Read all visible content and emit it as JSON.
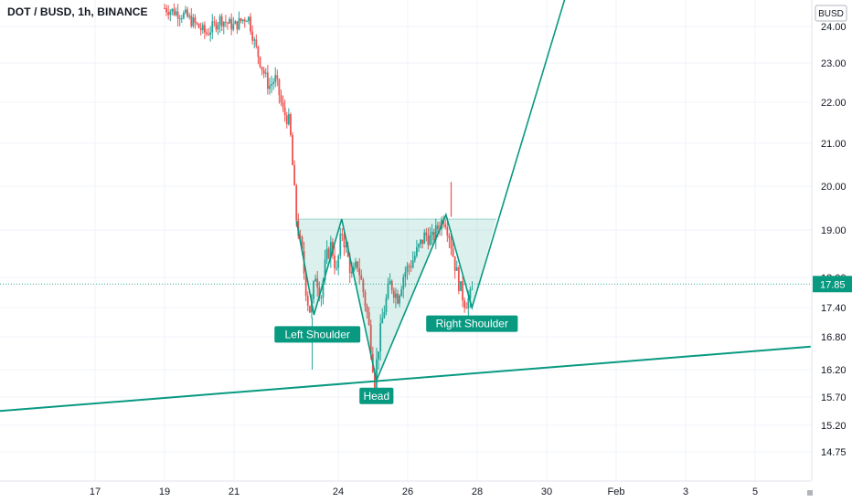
{
  "header": {
    "title": "DOT / BUSD, 1h, BINANCE"
  },
  "chart_data": {
    "type": "candlestick",
    "symbol": "DOT / BUSD",
    "interval": "1h",
    "exchange": "BINANCE",
    "currency_label": "BUSD",
    "last_price": 17.85,
    "last_price_label": "17.85",
    "y_ticks": [
      {
        "value": 24.0,
        "label": "24.00"
      },
      {
        "value": 23.0,
        "label": "23.00"
      },
      {
        "value": 22.0,
        "label": "22.00"
      },
      {
        "value": 21.0,
        "label": "21.00"
      },
      {
        "value": 20.0,
        "label": "20.00"
      },
      {
        "value": 19.0,
        "label": "19.00"
      },
      {
        "value": 18.0,
        "label": "18.00"
      },
      {
        "value": 17.4,
        "label": "17.40"
      },
      {
        "value": 16.8,
        "label": "16.80"
      },
      {
        "value": 16.2,
        "label": "16.20"
      },
      {
        "value": 15.7,
        "label": "15.70"
      },
      {
        "value": 15.2,
        "label": "15.20"
      },
      {
        "value": 14.75,
        "label": "14.75"
      }
    ],
    "x_ticks": [
      {
        "day": 17,
        "label": "17"
      },
      {
        "day": 19,
        "label": "19"
      },
      {
        "day": 21,
        "label": "21"
      },
      {
        "day": 24,
        "label": "24"
      },
      {
        "day": 26,
        "label": "26"
      },
      {
        "day": 28,
        "label": "28"
      },
      {
        "day": 30,
        "label": "30"
      },
      {
        "day": 32,
        "label": "Feb"
      },
      {
        "day": 34,
        "label": "3"
      },
      {
        "day": 36,
        "label": "5"
      }
    ],
    "price_path": [
      {
        "day": 19.0,
        "price": 24.5
      },
      {
        "day": 19.6,
        "price": 24.3
      },
      {
        "day": 20.2,
        "price": 23.8
      },
      {
        "day": 20.6,
        "price": 24.2
      },
      {
        "day": 21.0,
        "price": 24.0
      },
      {
        "day": 21.4,
        "price": 24.3
      },
      {
        "day": 21.6,
        "price": 23.5
      },
      {
        "day": 21.8,
        "price": 22.9
      },
      {
        "day": 22.0,
        "price": 22.4
      },
      {
        "day": 22.2,
        "price": 22.6
      },
      {
        "day": 22.4,
        "price": 21.8
      },
      {
        "day": 22.6,
        "price": 21.5
      },
      {
        "day": 22.7,
        "price": 20.3
      },
      {
        "day": 22.8,
        "price": 19.2
      },
      {
        "day": 22.95,
        "price": 18.5
      },
      {
        "day": 23.1,
        "price": 17.6
      },
      {
        "day": 23.2,
        "price": 17.3
      },
      {
        "day": 23.35,
        "price": 18.1
      },
      {
        "day": 23.5,
        "price": 17.6
      },
      {
        "day": 23.65,
        "price": 18.4
      },
      {
        "day": 23.8,
        "price": 18.7
      },
      {
        "day": 23.95,
        "price": 18.1
      },
      {
        "day": 24.1,
        "price": 19.0
      },
      {
        "day": 24.25,
        "price": 18.5
      },
      {
        "day": 24.4,
        "price": 18.0
      },
      {
        "day": 24.55,
        "price": 18.3
      },
      {
        "day": 24.7,
        "price": 17.8
      },
      {
        "day": 24.85,
        "price": 17.2
      },
      {
        "day": 24.95,
        "price": 16.6
      },
      {
        "day": 25.05,
        "price": 16.0
      },
      {
        "day": 25.15,
        "price": 16.6
      },
      {
        "day": 25.3,
        "price": 17.3
      },
      {
        "day": 25.5,
        "price": 17.9
      },
      {
        "day": 25.7,
        "price": 17.6
      },
      {
        "day": 25.9,
        "price": 18.1
      },
      {
        "day": 26.1,
        "price": 18.3
      },
      {
        "day": 26.3,
        "price": 18.6
      },
      {
        "day": 26.5,
        "price": 18.9
      },
      {
        "day": 26.7,
        "price": 18.8
      },
      {
        "day": 26.9,
        "price": 19.1
      },
      {
        "day": 27.05,
        "price": 19.3
      },
      {
        "day": 27.2,
        "price": 18.9
      },
      {
        "day": 27.35,
        "price": 18.3
      },
      {
        "day": 27.5,
        "price": 17.8
      },
      {
        "day": 27.65,
        "price": 17.5
      },
      {
        "day": 27.8,
        "price": 17.6
      },
      {
        "day": 27.9,
        "price": 17.8
      }
    ],
    "annotations": [
      {
        "text": "Left Shoulder",
        "day": 23.4,
        "price": 16.85
      },
      {
        "text": "Head",
        "day": 25.1,
        "price": 15.72
      },
      {
        "text": "Right Shoulder",
        "day": 27.85,
        "price": 17.07
      }
    ],
    "pattern": {
      "name": "inverse head and shoulders",
      "points": [
        {
          "day": 22.8,
          "price": 19.2
        },
        {
          "day": 23.3,
          "price": 17.25
        },
        {
          "day": 24.1,
          "price": 19.25
        },
        {
          "day": 25.1,
          "price": 16.0
        },
        {
          "day": 27.1,
          "price": 19.35
        },
        {
          "day": 27.85,
          "price": 17.4
        },
        {
          "day": 30.6,
          "price": 25.0
        }
      ],
      "neckline_price": 19.25
    },
    "trendline": {
      "start": {
        "day": 14.2,
        "price": 15.45
      },
      "end": {
        "day": 37.6,
        "price": 16.62
      }
    },
    "colors": {
      "up": "#26a69a",
      "down": "#ef5350",
      "pattern": "#089981",
      "pattern_fill": "#089981",
      "label_bg": "#089981",
      "price_tag": "#089981",
      "grid": "#f0f3fa"
    }
  }
}
